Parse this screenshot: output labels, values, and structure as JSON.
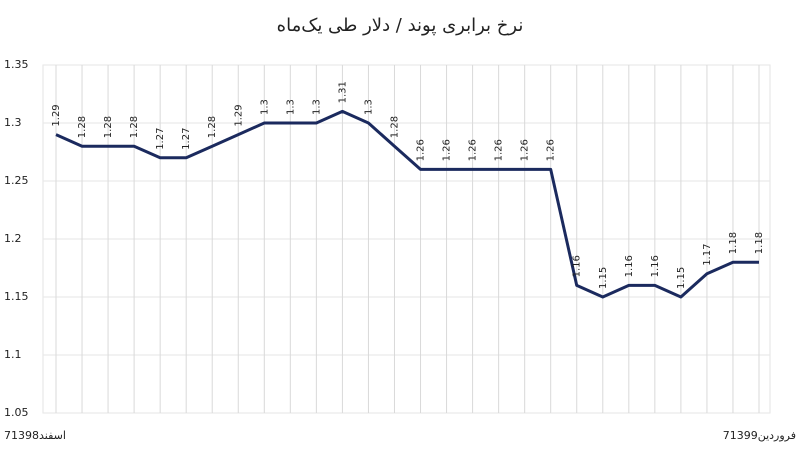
{
  "chart_data": {
    "type": "line",
    "title": "نرخ برابری پوند / دلار طی یک‌ماه",
    "categories": [
      "7اسفند1398",
      null,
      null,
      null,
      null,
      null,
      null,
      null,
      null,
      null,
      null,
      null,
      null,
      null,
      null,
      null,
      null,
      null,
      null,
      null,
      null,
      null,
      null,
      null,
      null,
      null,
      null,
      "7فروردین1399"
    ],
    "values": [
      1.29,
      1.28,
      1.28,
      1.28,
      1.27,
      1.27,
      1.28,
      1.29,
      1.3,
      1.3,
      1.3,
      1.31,
      1.3,
      1.28,
      1.26,
      1.26,
      1.26,
      1.26,
      1.26,
      1.26,
      1.16,
      1.15,
      1.16,
      1.16,
      1.15,
      1.17,
      1.18,
      1.18
    ],
    "color": "#1b2a5e",
    "ylim": [
      1.05,
      1.35
    ],
    "yticks": [
      1.05,
      1.1,
      1.15,
      1.2,
      1.25,
      1.3,
      1.35
    ],
    "grid": true
  }
}
